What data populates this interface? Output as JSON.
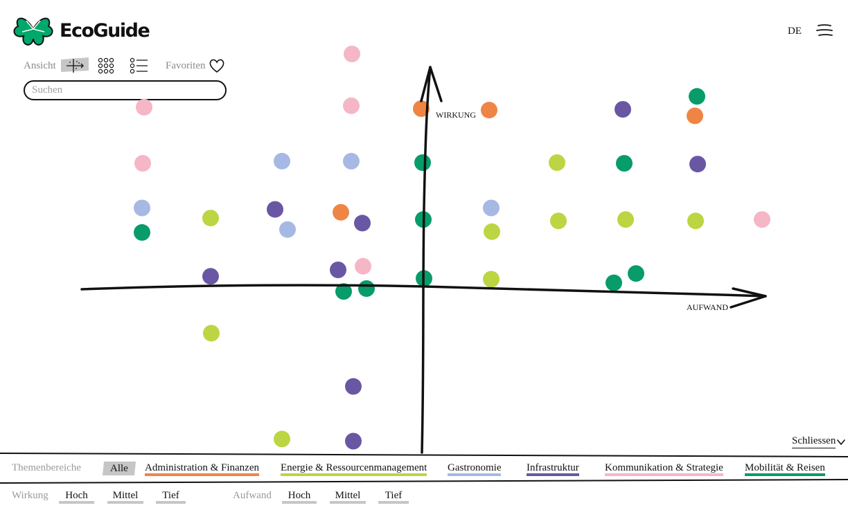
{
  "app": {
    "name": "EcoGuide",
    "language": "DE"
  },
  "icons": {
    "logo": "clover-logo-icon",
    "menu": "hamburger-menu-icon",
    "view_axis": "axis-view-icon",
    "view_grid": "grid-view-icon",
    "view_list": "list-view-icon",
    "favorites": "heart-icon",
    "close": "chevron-down-icon"
  },
  "toolbar": {
    "view_label": "Ansicht",
    "favorites_label": "Favoriten",
    "active_view": "axis"
  },
  "search": {
    "placeholder": "Suchen",
    "value": ""
  },
  "plot": {
    "axis_y_label": "WIRKUNG",
    "axis_x_label": "AUFWAND"
  },
  "close_label": "Schliessen",
  "colors": {
    "administration": "#ef8545",
    "energie": "#bcd543",
    "gastronomie": "#a6b9e4",
    "infrastruktur": "#6957a3",
    "kommunikation": "#f5b6c6",
    "mobilitaet": "#079c6a",
    "logo_green": "#00a86b",
    "chip_active_bg": "#c6c6c6"
  },
  "categories": {
    "label": "Themenbereiche",
    "all_label": "Alle",
    "items": [
      {
        "key": "administration",
        "label": "Administration & Finanzen"
      },
      {
        "key": "energie",
        "label": "Energie & Ressourcenmanagement"
      },
      {
        "key": "gastronomie",
        "label": "Gastronomie"
      },
      {
        "key": "infrastruktur",
        "label": "Infrastruktur"
      },
      {
        "key": "kommunikation",
        "label": "Kommunikation & Strategie"
      },
      {
        "key": "mobilitaet",
        "label": "Mobilität & Reisen"
      }
    ]
  },
  "filters": {
    "impact_label": "Wirkung",
    "effort_label": "Aufwand",
    "impact_options": [
      "Hoch",
      "Mittel",
      "Tief"
    ],
    "effort_options": [
      "Hoch",
      "Mittel",
      "Tief"
    ]
  },
  "measures": [
    {
      "category": "kommunikation",
      "aufwand": -1.02,
      "wirkung": 3.26
    },
    {
      "category": "kommunikation",
      "aufwand": -4.02,
      "wirkung": 2.52
    },
    {
      "category": "kommunikation",
      "aufwand": -1.03,
      "wirkung": 2.54
    },
    {
      "category": "administration",
      "aufwand": -0.02,
      "wirkung": 2.5
    },
    {
      "category": "administration",
      "aufwand": 0.96,
      "wirkung": 2.48
    },
    {
      "category": "infrastruktur",
      "aufwand": 2.89,
      "wirkung": 2.49
    },
    {
      "category": "mobilitaet",
      "aufwand": 3.96,
      "wirkung": 2.67
    },
    {
      "category": "administration",
      "aufwand": 3.93,
      "wirkung": 2.4
    },
    {
      "category": "kommunikation",
      "aufwand": -4.04,
      "wirkung": 1.74
    },
    {
      "category": "gastronomie",
      "aufwand": -2.03,
      "wirkung": 1.77
    },
    {
      "category": "gastronomie",
      "aufwand": -1.03,
      "wirkung": 1.77
    },
    {
      "category": "mobilitaet",
      "aufwand": 0.0,
      "wirkung": 1.75
    },
    {
      "category": "energie",
      "aufwand": 1.94,
      "wirkung": 1.75
    },
    {
      "category": "mobilitaet",
      "aufwand": 2.91,
      "wirkung": 1.74
    },
    {
      "category": "infrastruktur",
      "aufwand": 3.97,
      "wirkung": 1.73
    },
    {
      "category": "gastronomie",
      "aufwand": -4.05,
      "wirkung": 1.12
    },
    {
      "category": "mobilitaet",
      "aufwand": -4.05,
      "wirkung": 0.78
    },
    {
      "category": "energie",
      "aufwand": -3.06,
      "wirkung": 0.98
    },
    {
      "category": "infrastruktur",
      "aufwand": -2.13,
      "wirkung": 1.1
    },
    {
      "category": "gastronomie",
      "aufwand": -1.95,
      "wirkung": 0.82
    },
    {
      "category": "administration",
      "aufwand": -1.18,
      "wirkung": 1.06
    },
    {
      "category": "infrastruktur",
      "aufwand": -0.87,
      "wirkung": 0.91
    },
    {
      "category": "mobilitaet",
      "aufwand": 0.01,
      "wirkung": 0.96
    },
    {
      "category": "gastronomie",
      "aufwand": 0.99,
      "wirkung": 1.12
    },
    {
      "category": "energie",
      "aufwand": 1.0,
      "wirkung": 0.79
    },
    {
      "category": "energie",
      "aufwand": 1.96,
      "wirkung": 0.94
    },
    {
      "category": "energie",
      "aufwand": 2.93,
      "wirkung": 0.96
    },
    {
      "category": "energie",
      "aufwand": 3.94,
      "wirkung": 0.94
    },
    {
      "category": "kommunikation",
      "aufwand": 4.9,
      "wirkung": 0.96
    },
    {
      "category": "infrastruktur",
      "aufwand": -3.06,
      "wirkung": 0.17
    },
    {
      "category": "infrastruktur",
      "aufwand": -1.22,
      "wirkung": 0.26
    },
    {
      "category": "kommunikation",
      "aufwand": -0.86,
      "wirkung": 0.31
    },
    {
      "category": "mobilitaet",
      "aufwand": -1.14,
      "wirkung": -0.04
    },
    {
      "category": "mobilitaet",
      "aufwand": -0.81,
      "wirkung": 0.0
    },
    {
      "category": "mobilitaet",
      "aufwand": 0.02,
      "wirkung": 0.14
    },
    {
      "category": "energie",
      "aufwand": 0.99,
      "wirkung": 0.13
    },
    {
      "category": "mobilitaet",
      "aufwand": 2.76,
      "wirkung": 0.08
    },
    {
      "category": "mobilitaet",
      "aufwand": 3.08,
      "wirkung": 0.21
    },
    {
      "category": "energie",
      "aufwand": -3.05,
      "wirkung": -0.62
    },
    {
      "category": "infrastruktur",
      "aufwand": -1.0,
      "wirkung": -1.36
    },
    {
      "category": "energie",
      "aufwand": -2.03,
      "wirkung": -2.09
    },
    {
      "category": "infrastruktur",
      "aufwand": -1.0,
      "wirkung": -2.12
    }
  ]
}
